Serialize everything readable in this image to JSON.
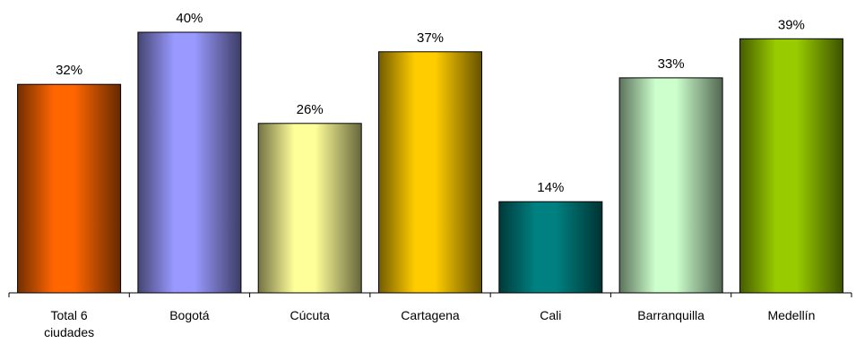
{
  "chart_data": {
    "type": "bar",
    "categories": [
      [
        "Total 6",
        "ciudades"
      ],
      [
        "Bogotá"
      ],
      [
        "Cúcuta"
      ],
      [
        "Cartagena"
      ],
      [
        "Cali"
      ],
      [
        "Barranquilla"
      ],
      [
        "Medellín"
      ]
    ],
    "values": [
      32,
      40,
      26,
      37,
      14,
      33,
      39
    ],
    "value_labels": [
      "32%",
      "40%",
      "26%",
      "37%",
      "14%",
      "33%",
      "39%"
    ],
    "colors": [
      "#FF6600",
      "#9999FF",
      "#FFFF99",
      "#FFCC00",
      "#008080",
      "#CCFFCC",
      "#99CC00"
    ],
    "title": "",
    "xlabel": "",
    "ylabel": "",
    "ylim": [
      0,
      40
    ],
    "grid": false,
    "legend": false
  }
}
